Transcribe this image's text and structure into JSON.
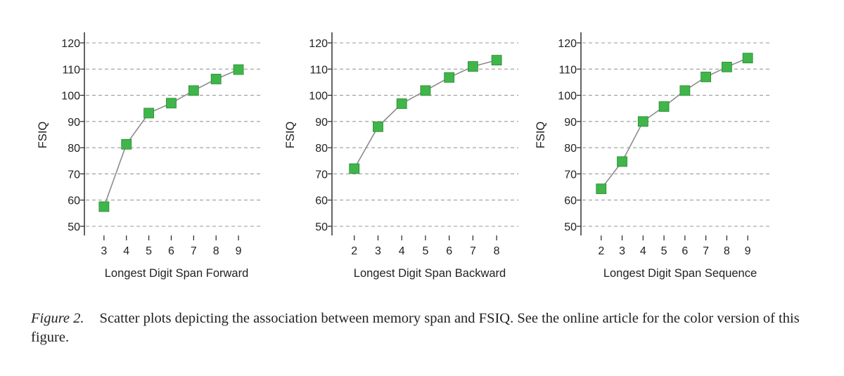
{
  "chart_data": [
    {
      "type": "line",
      "x": [
        3,
        4,
        5,
        6,
        7,
        8,
        9
      ],
      "y": [
        57.5,
        81.3,
        93.2,
        97,
        101.8,
        106.2,
        109.8
      ],
      "xlabel": "Longest Digit Span Forward",
      "ylabel": "FSIQ",
      "xlim": [
        2,
        9.5
      ],
      "ylim": [
        48,
        123
      ],
      "xticks": [
        3,
        4,
        5,
        6,
        7,
        8,
        9
      ],
      "yticks": [
        50,
        60,
        70,
        80,
        90,
        100,
        110,
        120
      ],
      "grid": "horizontal dashed"
    },
    {
      "type": "line",
      "x": [
        2,
        3,
        4,
        5,
        6,
        7,
        8
      ],
      "y": [
        72,
        88,
        96.8,
        101.8,
        106.8,
        111,
        113.4
      ],
      "xlabel": "Longest Digit Span Backward",
      "ylabel": "FSIQ",
      "xlim": [
        1,
        8.5
      ],
      "ylim": [
        48,
        123
      ],
      "xticks": [
        2,
        3,
        4,
        5,
        6,
        7,
        8
      ],
      "yticks": [
        50,
        60,
        70,
        80,
        90,
        100,
        110,
        120
      ],
      "grid": "horizontal dashed"
    },
    {
      "type": "line",
      "x": [
        2,
        3,
        4,
        5,
        6,
        7,
        8,
        9
      ],
      "y": [
        64.3,
        74.7,
        90,
        95.7,
        101.8,
        107,
        110.8,
        114.2
      ],
      "xlabel": "Longest Digit Span Sequence",
      "ylabel": "FSIQ",
      "xlim": [
        1,
        9.6
      ],
      "ylim": [
        48,
        123
      ],
      "xticks": [
        2,
        3,
        4,
        5,
        6,
        7,
        8,
        9
      ],
      "yticks": [
        50,
        60,
        70,
        80,
        90,
        100,
        110,
        120
      ],
      "grid": "horizontal dashed"
    }
  ],
  "colors": {
    "marker": "#3fb54a",
    "marker_edge": "#2a8a34",
    "line": "#8c8c8c",
    "grid": "#9a9a9a",
    "axis": "#222222"
  },
  "caption": {
    "label": "Figure 2.",
    "text": "Scatter plots depicting the association between memory span and FSIQ. See the online article for the color version of this figure."
  }
}
